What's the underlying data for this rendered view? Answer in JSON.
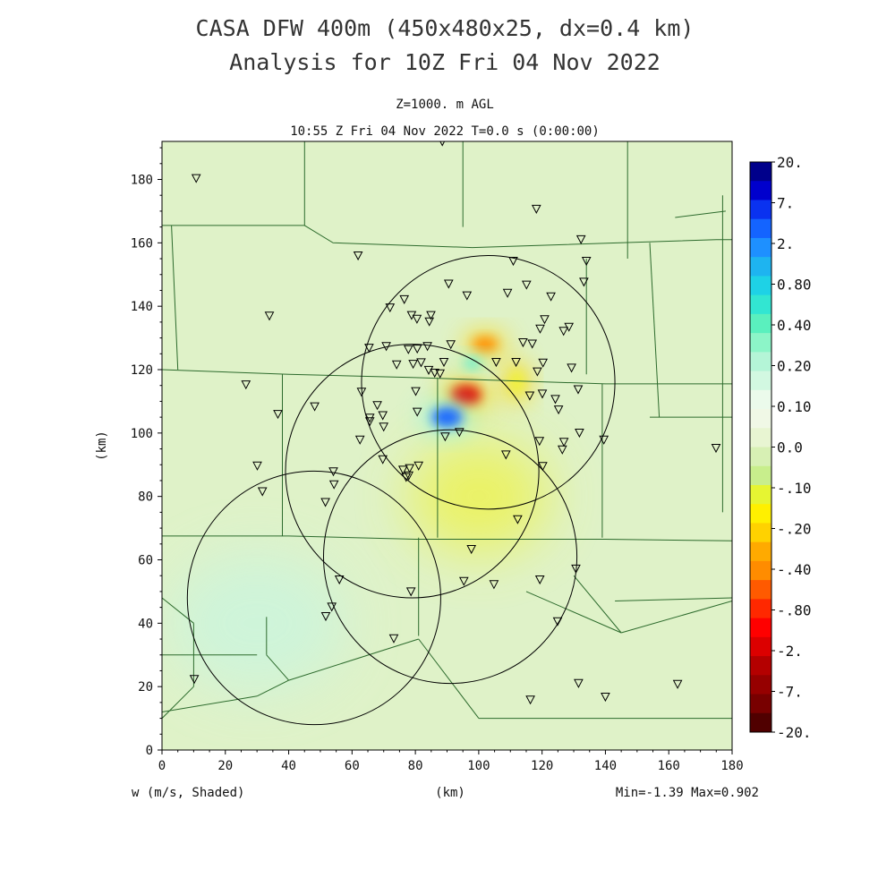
{
  "header": {
    "title_line1": "CASA DFW 400m (450x480x25, dx=0.4 km)",
    "title_line2": "Analysis for 10Z Fri 04 Nov 2022",
    "level_label": "Z=1000. m AGL",
    "time_label": "10:55 Z Fri 04 Nov 2022    T=0.0 s (0:00:00)"
  },
  "footer": {
    "variable_label": "w (m/s, Shaded)",
    "x_unit": "(km)",
    "minmax": "Min=-1.39 Max=0.902"
  },
  "colors": {
    "background_field": "#dff2c8",
    "county_lines": "#2d6b2d",
    "radar_rings": "#000000"
  },
  "colorbar": {
    "labels": [
      "20.",
      "7.",
      "2.",
      "0.80",
      "0.40",
      "0.20",
      "0.10",
      "0.0",
      "-.10",
      "-.20",
      "-.40",
      "-.80",
      "-2.",
      "-7.",
      "-20."
    ],
    "colors": [
      "#00008b",
      "#0000cd",
      "#0a32f0",
      "#1464ff",
      "#1e90ff",
      "#1eb4f0",
      "#1ed2e6",
      "#32e6d2",
      "#5af0be",
      "#8cf5c8",
      "#b4f5d7",
      "#d2f8e1",
      "#ebfaeb",
      "#f0f8e6",
      "#e8f5d2",
      "#d7f0b4",
      "#c8ee8c",
      "#e6f532",
      "#fff000",
      "#ffd200",
      "#ffaa00",
      "#ff8c00",
      "#ff5a00",
      "#ff2800",
      "#ff0000",
      "#dc0000",
      "#b40000",
      "#960000",
      "#780000",
      "#500000"
    ]
  },
  "chart_data": {
    "type": "heatmap",
    "title": "CASA DFW 400m (450x480x25, dx=0.4 km)",
    "subtitle": "Analysis for 10Z Fri 04 Nov 2022",
    "xlabel": "(km)",
    "ylabel": "(km)",
    "xlim": [
      0,
      180
    ],
    "ylim": [
      0,
      192
    ],
    "x_ticks": [
      0,
      20,
      40,
      60,
      80,
      100,
      120,
      140,
      160,
      180
    ],
    "y_ticks": [
      0,
      20,
      40,
      60,
      80,
      100,
      120,
      140,
      160,
      180
    ],
    "variable": "w (m/s, Shaded)",
    "min": -1.39,
    "max": 0.902,
    "features": [
      {
        "kind": "updraft-blob",
        "x": 96,
        "y": 112,
        "rx": 6,
        "ry": 4,
        "value": -1.39
      },
      {
        "kind": "updraft-blob",
        "x": 102,
        "y": 128,
        "rx": 5,
        "ry": 3,
        "value": -0.6
      },
      {
        "kind": "updraft-blob",
        "x": 112,
        "y": 116,
        "rx": 3,
        "ry": 5,
        "value": -0.2
      },
      {
        "kind": "downdraft-blob",
        "x": 90,
        "y": 105,
        "rx": 6,
        "ry": 4,
        "value": 0.902
      },
      {
        "kind": "downdraft-blob",
        "x": 98,
        "y": 122,
        "rx": 3,
        "ry": 2,
        "value": 0.2
      },
      {
        "kind": "weak-negative",
        "x": 100,
        "y": 80,
        "rx": 22,
        "ry": 18,
        "value": -0.15
      },
      {
        "kind": "weak-positive",
        "x": 30,
        "y": 40,
        "rx": 28,
        "ry": 22,
        "value": 0.05
      }
    ],
    "radar_rings": [
      {
        "cx": 103,
        "cy": 116,
        "r": 40
      },
      {
        "cx": 79,
        "cy": 88,
        "r": 40
      },
      {
        "cx": 91,
        "cy": 61,
        "r": 40
      },
      {
        "cx": 48,
        "cy": 48,
        "r": 40
      }
    ],
    "stations": [
      [
        10.8,
        180.4
      ],
      [
        88.5,
        192.0
      ],
      [
        118.2,
        170.7
      ],
      [
        132.3,
        161.1
      ],
      [
        61.9,
        156.0
      ],
      [
        110.9,
        154.3
      ],
      [
        134.0,
        154.3
      ],
      [
        115.1,
        146.8
      ],
      [
        133.2,
        147.7
      ],
      [
        90.5,
        147.1
      ],
      [
        76.5,
        142.2
      ],
      [
        72.0,
        139.6
      ],
      [
        96.3,
        143.4
      ],
      [
        109.1,
        144.2
      ],
      [
        122.8,
        143.1
      ],
      [
        33.9,
        137.0
      ],
      [
        78.8,
        137.2
      ],
      [
        80.5,
        136.0
      ],
      [
        84.9,
        137.2
      ],
      [
        84.4,
        135.2
      ],
      [
        120.8,
        135.9
      ],
      [
        119.4,
        132.9
      ],
      [
        126.8,
        132.2
      ],
      [
        128.5,
        133.5
      ],
      [
        91.2,
        128.0
      ],
      [
        65.4,
        126.9
      ],
      [
        70.8,
        127.4
      ],
      [
        77.8,
        126.4
      ],
      [
        80.6,
        126.6
      ],
      [
        83.8,
        127.4
      ],
      [
        116.9,
        128.2
      ],
      [
        114.0,
        128.6
      ],
      [
        74.1,
        121.6
      ],
      [
        79.3,
        121.8
      ],
      [
        81.8,
        122.3
      ],
      [
        89.0,
        122.4
      ],
      [
        84.2,
        119.9
      ],
      [
        86.1,
        119.0
      ],
      [
        87.8,
        118.8
      ],
      [
        105.5,
        122.4
      ],
      [
        111.8,
        122.4
      ],
      [
        120.3,
        122.2
      ],
      [
        118.5,
        119.4
      ],
      [
        129.3,
        120.6
      ],
      [
        26.5,
        115.3
      ],
      [
        63.0,
        113.0
      ],
      [
        80.1,
        113.2
      ],
      [
        116.1,
        111.8
      ],
      [
        120.1,
        112.4
      ],
      [
        124.2,
        110.7
      ],
      [
        131.4,
        113.8
      ],
      [
        36.6,
        106.0
      ],
      [
        48.2,
        108.4
      ],
      [
        68.0,
        108.8
      ],
      [
        69.7,
        105.6
      ],
      [
        65.6,
        104.8
      ],
      [
        65.6,
        103.7
      ],
      [
        70.0,
        102.0
      ],
      [
        80.6,
        106.7
      ],
      [
        125.2,
        107.4
      ],
      [
        62.5,
        97.9
      ],
      [
        89.4,
        98.9
      ],
      [
        93.9,
        100.3
      ],
      [
        119.2,
        97.5
      ],
      [
        126.9,
        97.2
      ],
      [
        131.8,
        100.1
      ],
      [
        139.5,
        97.9
      ],
      [
        174.9,
        95.3
      ],
      [
        30.1,
        89.7
      ],
      [
        69.7,
        91.7
      ],
      [
        76.1,
        88.4
      ],
      [
        78.2,
        88.9
      ],
      [
        77.9,
        86.6
      ],
      [
        77.1,
        86.1
      ],
      [
        81.0,
        89.7
      ],
      [
        108.6,
        93.2
      ],
      [
        120.2,
        89.6
      ],
      [
        126.4,
        94.8
      ],
      [
        54.1,
        87.9
      ],
      [
        54.3,
        83.8
      ],
      [
        31.7,
        81.6
      ],
      [
        51.6,
        78.2
      ],
      [
        112.3,
        72.8
      ],
      [
        97.7,
        63.4
      ],
      [
        56.0,
        53.8
      ],
      [
        95.3,
        53.3
      ],
      [
        104.8,
        52.3
      ],
      [
        119.3,
        53.8
      ],
      [
        130.7,
        57.2
      ],
      [
        78.6,
        50.0
      ],
      [
        53.6,
        45.2
      ],
      [
        51.7,
        42.2
      ],
      [
        124.9,
        40.6
      ],
      [
        73.2,
        35.2
      ],
      [
        10.2,
        22.4
      ],
      [
        131.5,
        21.1
      ],
      [
        162.8,
        20.8
      ],
      [
        116.3,
        15.9
      ],
      [
        140.0,
        16.8
      ]
    ]
  }
}
